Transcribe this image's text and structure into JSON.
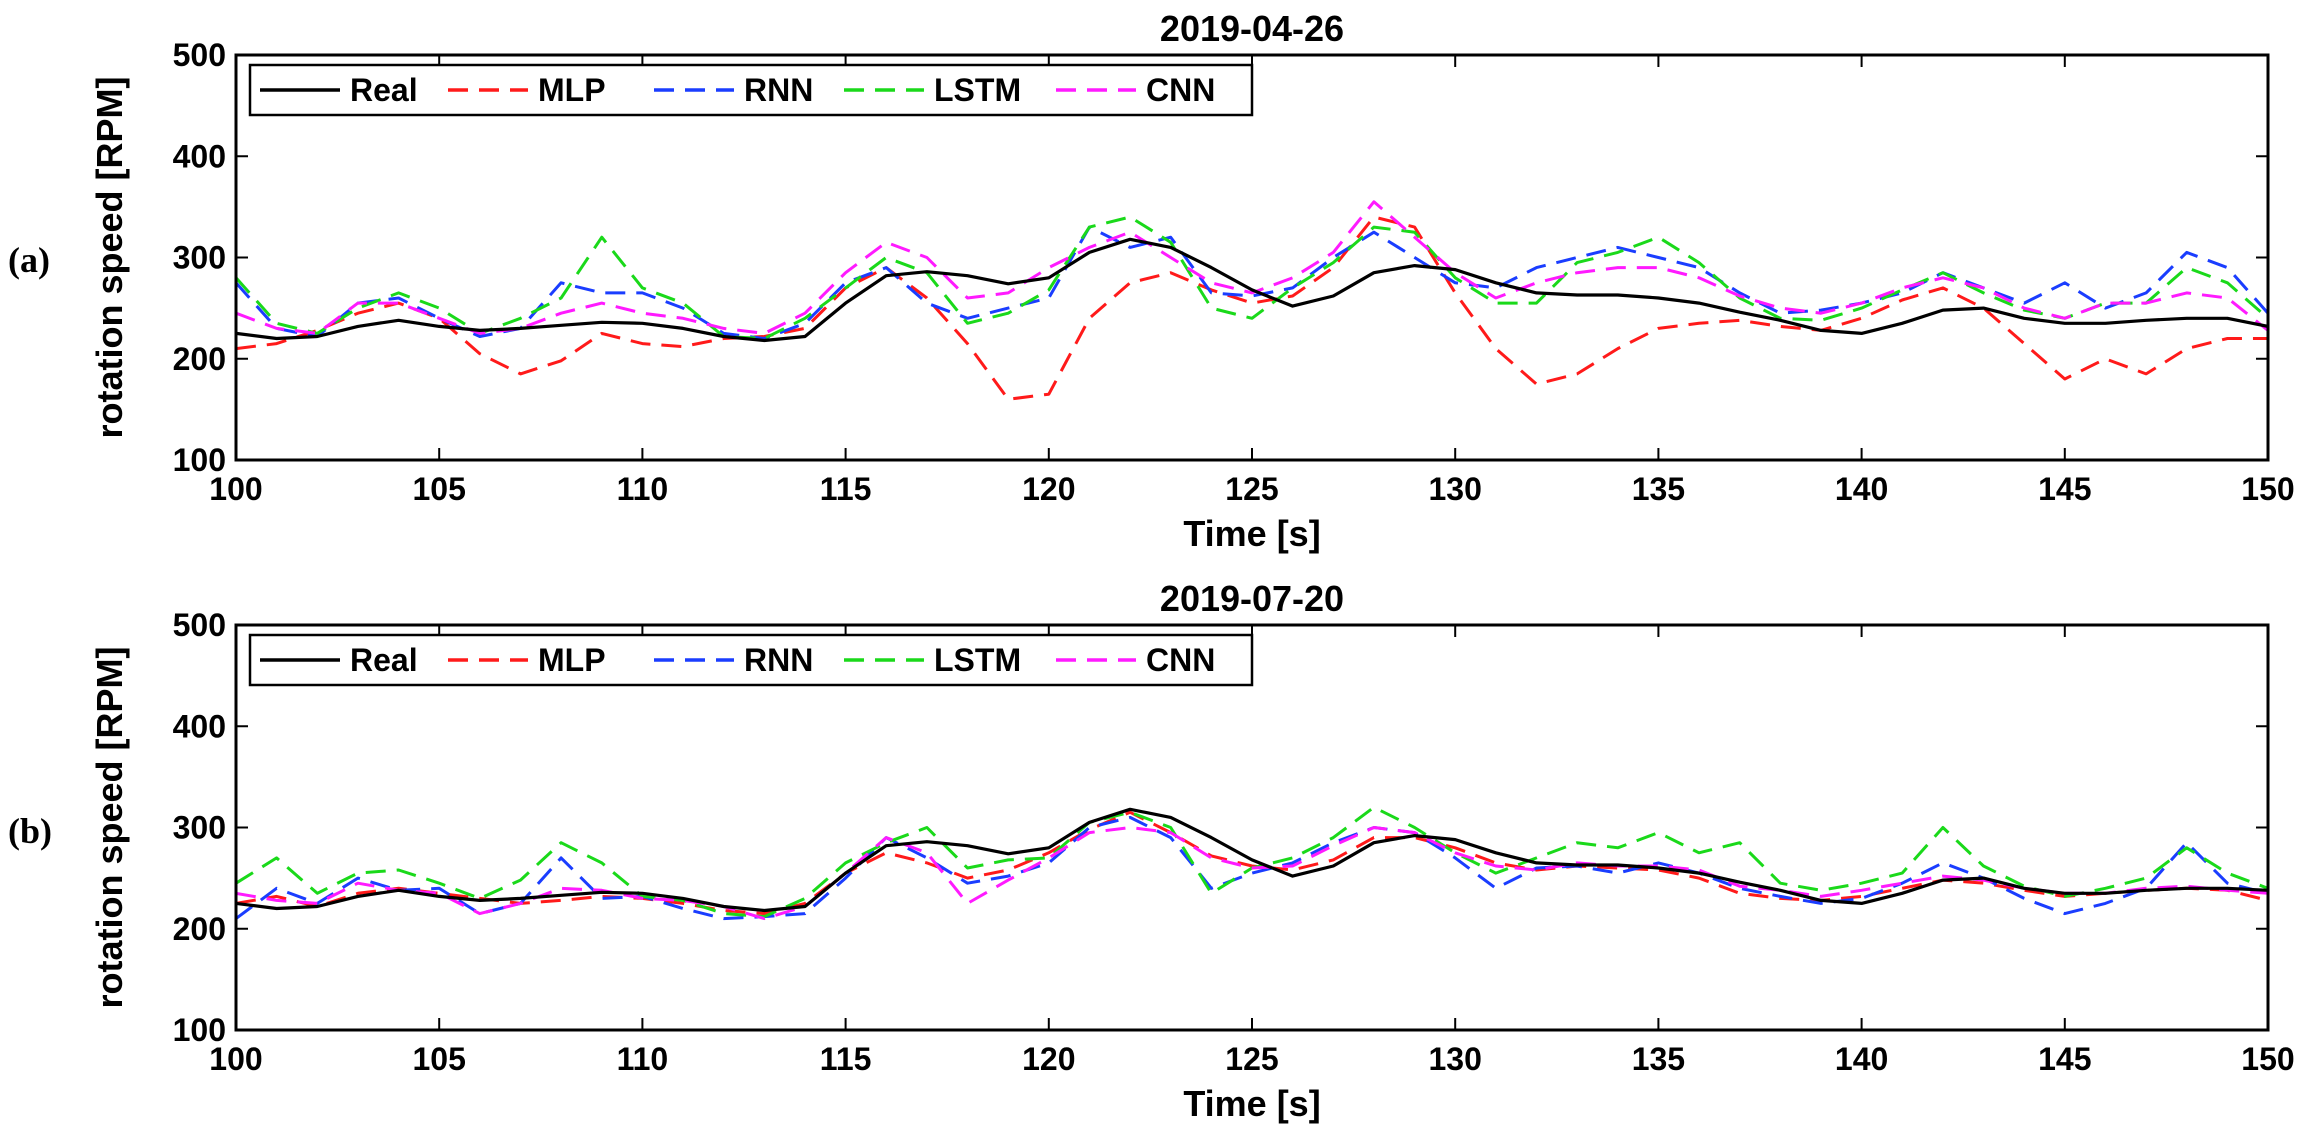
{
  "figure": {
    "panels": [
      "(a)",
      "(b)"
    ]
  },
  "chart_data": [
    {
      "type": "line",
      "panel_label": "(a)",
      "title": "2019-04-26",
      "xlabel": "Time [s]",
      "ylabel": "rotation speed [RPM]",
      "xlim": [
        100,
        150
      ],
      "ylim": [
        100,
        500
      ],
      "xticks": [
        100,
        105,
        110,
        115,
        120,
        125,
        130,
        135,
        140,
        145,
        150
      ],
      "yticks": [
        100,
        200,
        300,
        400,
        500
      ],
      "legend_position": "top-left",
      "x": [
        100,
        101,
        102,
        103,
        104,
        105,
        106,
        107,
        108,
        109,
        110,
        111,
        112,
        113,
        114,
        115,
        116,
        117,
        118,
        119,
        120,
        121,
        122,
        123,
        124,
        125,
        126,
        127,
        128,
        129,
        130,
        131,
        132,
        133,
        134,
        135,
        136,
        137,
        138,
        139,
        140,
        141,
        142,
        143,
        144,
        145,
        146,
        147,
        148,
        149,
        150
      ],
      "series": [
        {
          "name": "Real",
          "color": "#000000",
          "style": "solid",
          "values": [
            225,
            220,
            222,
            232,
            238,
            232,
            228,
            230,
            233,
            236,
            235,
            230,
            222,
            218,
            222,
            255,
            282,
            286,
            282,
            274,
            280,
            305,
            318,
            310,
            290,
            268,
            252,
            262,
            285,
            292,
            288,
            275,
            265,
            263,
            263,
            260,
            255,
            246,
            238,
            228,
            225,
            235,
            248,
            250,
            240,
            235,
            235,
            238,
            240,
            240,
            232
          ]
        },
        {
          "name": "MLP",
          "color": "#ff1a1a",
          "style": "dashed",
          "values": [
            210,
            215,
            228,
            245,
            255,
            240,
            205,
            185,
            198,
            225,
            215,
            212,
            220,
            222,
            230,
            270,
            290,
            260,
            215,
            160,
            165,
            240,
            275,
            285,
            268,
            255,
            262,
            290,
            340,
            330,
            265,
            210,
            175,
            185,
            210,
            230,
            235,
            238,
            232,
            228,
            240,
            258,
            270,
            250,
            215,
            180,
            200,
            185,
            210,
            220,
            220
          ]
        },
        {
          "name": "RNN",
          "color": "#1a3dff",
          "style": "dashed",
          "values": [
            275,
            230,
            222,
            255,
            260,
            240,
            222,
            230,
            275,
            265,
            265,
            250,
            225,
            220,
            235,
            275,
            290,
            255,
            240,
            250,
            260,
            330,
            310,
            320,
            265,
            262,
            270,
            300,
            325,
            300,
            275,
            270,
            290,
            300,
            310,
            300,
            290,
            265,
            245,
            248,
            255,
            265,
            285,
            270,
            255,
            275,
            250,
            265,
            305,
            290,
            245
          ]
        },
        {
          "name": "LSTM",
          "color": "#1ad91a",
          "style": "dashed",
          "values": [
            280,
            235,
            225,
            250,
            265,
            250,
            225,
            240,
            260,
            320,
            270,
            255,
            222,
            220,
            240,
            270,
            300,
            285,
            235,
            245,
            268,
            330,
            340,
            315,
            250,
            240,
            270,
            295,
            330,
            325,
            280,
            255,
            255,
            295,
            305,
            320,
            295,
            260,
            240,
            238,
            250,
            268,
            285,
            265,
            248,
            240,
            255,
            255,
            290,
            275,
            240
          ]
        },
        {
          "name": "CNN",
          "color": "#ff1aff",
          "style": "dashed",
          "values": [
            245,
            230,
            225,
            255,
            255,
            240,
            225,
            230,
            245,
            255,
            245,
            240,
            230,
            225,
            245,
            285,
            315,
            300,
            260,
            265,
            290,
            310,
            325,
            300,
            275,
            265,
            280,
            305,
            355,
            320,
            285,
            260,
            275,
            285,
            290,
            290,
            280,
            262,
            250,
            245,
            255,
            270,
            280,
            270,
            250,
            240,
            255,
            255,
            265,
            260,
            228
          ]
        }
      ]
    },
    {
      "type": "line",
      "panel_label": "(b)",
      "title": "2019-07-20",
      "xlabel": "Time [s]",
      "ylabel": "rotation speed [RPM]",
      "xlim": [
        100,
        150
      ],
      "ylim": [
        100,
        500
      ],
      "xticks": [
        100,
        105,
        110,
        115,
        120,
        125,
        130,
        135,
        140,
        145,
        150
      ],
      "yticks": [
        100,
        200,
        300,
        400,
        500
      ],
      "legend_position": "top-left",
      "x": [
        100,
        101,
        102,
        103,
        104,
        105,
        106,
        107,
        108,
        109,
        110,
        111,
        112,
        113,
        114,
        115,
        116,
        117,
        118,
        119,
        120,
        121,
        122,
        123,
        124,
        125,
        126,
        127,
        128,
        129,
        130,
        131,
        132,
        133,
        134,
        135,
        136,
        137,
        138,
        139,
        140,
        141,
        142,
        143,
        144,
        145,
        146,
        147,
        148,
        149,
        150
      ],
      "series": [
        {
          "name": "Real",
          "color": "#000000",
          "style": "solid",
          "values": [
            225,
            220,
            222,
            232,
            238,
            232,
            228,
            230,
            233,
            236,
            235,
            230,
            222,
            218,
            222,
            255,
            282,
            286,
            282,
            274,
            280,
            305,
            318,
            310,
            290,
            268,
            252,
            262,
            285,
            292,
            288,
            275,
            265,
            263,
            263,
            260,
            255,
            246,
            238,
            228,
            225,
            235,
            248,
            250,
            240,
            235,
            235,
            238,
            240,
            240,
            238
          ]
        },
        {
          "name": "MLP",
          "color": "#ff1a1a",
          "style": "dashed",
          "values": [
            225,
            232,
            222,
            235,
            240,
            235,
            230,
            225,
            228,
            232,
            230,
            225,
            218,
            215,
            225,
            255,
            275,
            265,
            250,
            258,
            275,
            298,
            315,
            295,
            272,
            262,
            258,
            268,
            290,
            290,
            280,
            265,
            258,
            262,
            260,
            258,
            250,
            235,
            230,
            228,
            232,
            240,
            248,
            245,
            238,
            232,
            235,
            238,
            240,
            238,
            228
          ]
        },
        {
          "name": "RNN",
          "color": "#1a3dff",
          "style": "dashed",
          "values": [
            210,
            240,
            225,
            250,
            238,
            240,
            215,
            225,
            270,
            230,
            232,
            220,
            210,
            212,
            215,
            250,
            290,
            270,
            245,
            252,
            265,
            300,
            310,
            290,
            240,
            255,
            265,
            285,
            300,
            295,
            270,
            240,
            260,
            262,
            255,
            265,
            255,
            240,
            232,
            225,
            230,
            245,
            265,
            250,
            230,
            215,
            225,
            240,
            285,
            245,
            235
          ]
        },
        {
          "name": "LSTM",
          "color": "#1ad91a",
          "style": "dashed",
          "values": [
            245,
            270,
            235,
            255,
            258,
            245,
            230,
            248,
            285,
            265,
            232,
            228,
            215,
            212,
            230,
            265,
            285,
            300,
            260,
            268,
            270,
            305,
            315,
            300,
            235,
            260,
            270,
            290,
            320,
            300,
            275,
            255,
            270,
            285,
            280,
            295,
            275,
            285,
            245,
            238,
            245,
            255,
            300,
            262,
            242,
            232,
            240,
            250,
            280,
            255,
            240
          ]
        },
        {
          "name": "CNN",
          "color": "#ff1aff",
          "style": "dashed",
          "values": [
            235,
            228,
            225,
            245,
            238,
            235,
            215,
            225,
            240,
            238,
            230,
            228,
            222,
            210,
            222,
            255,
            290,
            275,
            225,
            248,
            270,
            295,
            300,
            295,
            270,
            260,
            262,
            282,
            300,
            295,
            275,
            262,
            258,
            265,
            262,
            262,
            258,
            242,
            238,
            232,
            238,
            245,
            252,
            248,
            240,
            235,
            235,
            240,
            242,
            238,
            235
          ]
        }
      ]
    }
  ]
}
